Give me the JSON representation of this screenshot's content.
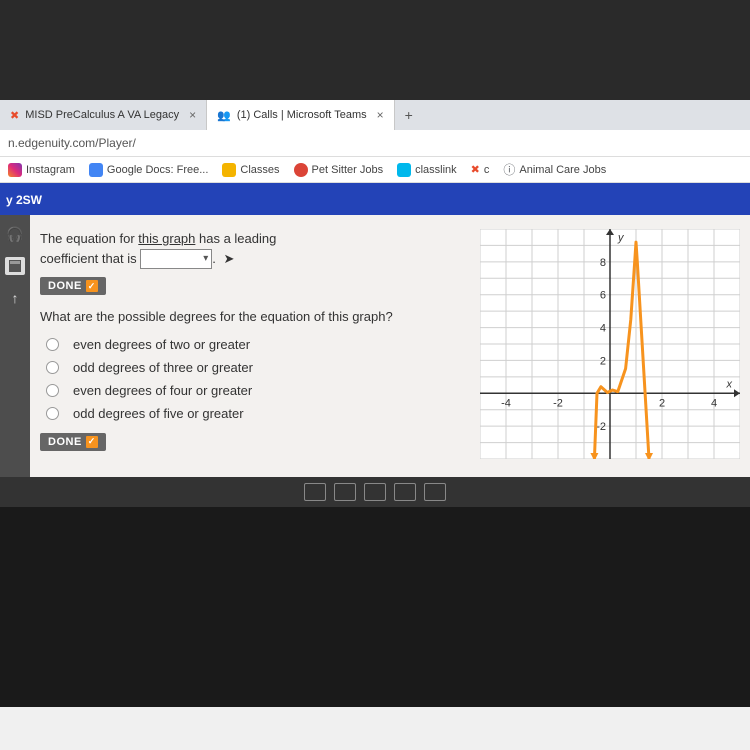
{
  "tabs": [
    {
      "title": "MISD PreCalculus A VA Legacy",
      "icon_color": "#e84b2c"
    },
    {
      "title": "(1) Calls | Microsoft Teams",
      "icon_color": "#5059c9"
    }
  ],
  "address": "n.edgenuity.com/Player/",
  "bookmarks": [
    {
      "label": "Instagram",
      "color": "#e1306c"
    },
    {
      "label": "Google Docs: Free...",
      "color": "#4285f4"
    },
    {
      "label": "Classes",
      "color": "#f4b400"
    },
    {
      "label": "Pet Sitter Jobs",
      "color": "#db4437"
    },
    {
      "label": "classlink",
      "color": "#00b8ec"
    },
    {
      "label": "c",
      "color": "#333333"
    },
    {
      "label": "Animal Care Jobs",
      "color": "#5f6368"
    }
  ],
  "header_label": "y 2SW",
  "question1": {
    "line1": "The equation for ",
    "underline": "this graph",
    "line2": " has a leading",
    "line3": "coefficient that is "
  },
  "done_label": "DONE",
  "question2": "What are the possible degrees for the equation of this graph?",
  "choices": [
    "even degrees of two or greater",
    "odd degrees of three or greater",
    "even degrees of four or greater",
    "odd degrees of five or greater"
  ],
  "graph": {
    "type": "line",
    "axis_label_x": "x",
    "axis_label_y": "y",
    "xlim": [
      -5,
      5
    ],
    "ylim": [
      -4,
      10
    ],
    "xticks": [
      -4,
      -2,
      2,
      4
    ],
    "yticks": [
      -2,
      2,
      4,
      6,
      8
    ],
    "grid_color": "#cfcfcf",
    "axis_color": "#333333",
    "curve_color": "#f7931e",
    "curve_width": 3,
    "background_color": "#ffffff",
    "label_fontsize": 11,
    "curve_points": [
      [
        -0.6,
        -4
      ],
      [
        -0.5,
        0
      ],
      [
        -0.35,
        0.4
      ],
      [
        -0.1,
        0.05
      ],
      [
        0.1,
        0.2
      ],
      [
        0.3,
        0.1
      ],
      [
        0.6,
        1.5
      ],
      [
        0.8,
        4.5
      ],
      [
        0.95,
        8
      ],
      [
        1.0,
        9.2
      ],
      [
        1.05,
        8
      ],
      [
        1.2,
        4
      ],
      [
        1.35,
        0
      ],
      [
        1.5,
        -4
      ]
    ]
  }
}
